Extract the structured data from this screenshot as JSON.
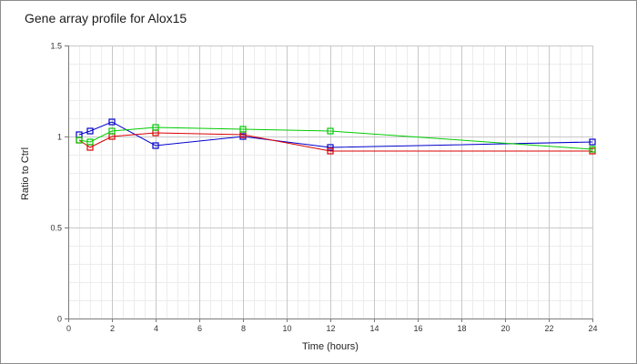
{
  "chart_data": {
    "type": "line",
    "title": "Gene array profile for Alox15",
    "xlabel": "Time (hours)",
    "ylabel": "Ratio to Ctrl",
    "xlim": [
      0,
      24
    ],
    "ylim": [
      0,
      1.5
    ],
    "x_ticks": [
      "0",
      "2",
      "4",
      "6",
      "8",
      "10",
      "12",
      "14",
      "16",
      "18",
      "20",
      "22",
      "24"
    ],
    "y_ticks": [
      "0",
      "0.5",
      "1",
      "1.5"
    ],
    "grid": true,
    "series": [
      {
        "color": "#0000cc",
        "x": [
          0.5,
          1,
          2,
          4,
          8,
          12,
          24
        ],
        "y": [
          1.01,
          1.03,
          1.08,
          0.95,
          1.0,
          0.94,
          0.97
        ]
      },
      {
        "color": "#dd0000",
        "x": [
          0.5,
          1,
          2,
          4,
          8,
          12,
          24
        ],
        "y": [
          0.98,
          0.94,
          1.0,
          1.02,
          1.01,
          0.92,
          0.92
        ]
      },
      {
        "color": "#00cc00",
        "x": [
          0.5,
          1,
          2,
          4,
          8,
          12,
          24
        ],
        "y": [
          0.98,
          0.97,
          1.03,
          1.05,
          1.04,
          1.03,
          0.93
        ]
      }
    ]
  }
}
